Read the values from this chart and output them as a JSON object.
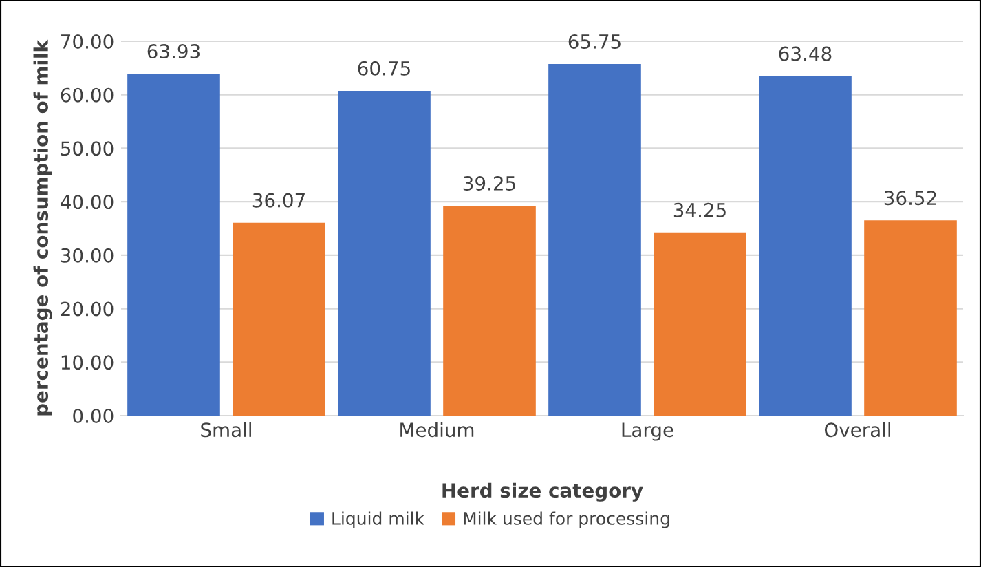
{
  "chart_data": {
    "type": "bar",
    "xlabel": "Herd size category",
    "ylabel": "percentage of consumption of milk",
    "categories": [
      "Small",
      "Medium",
      "Large",
      "Overall"
    ],
    "series": [
      {
        "name": "Liquid milk",
        "color": "#4472c4",
        "values": [
          63.93,
          60.75,
          65.75,
          63.48
        ]
      },
      {
        "name": "Milk used for processing",
        "color": "#ed7d31",
        "values": [
          36.07,
          39.25,
          34.25,
          36.52
        ]
      }
    ],
    "ylim": [
      0,
      70
    ],
    "yticks": [
      {
        "value": 0,
        "label": "0.00"
      },
      {
        "value": 10,
        "label": "10.00"
      },
      {
        "value": 20,
        "label": "20.00"
      },
      {
        "value": 30,
        "label": "30.00"
      },
      {
        "value": 40,
        "label": "40.00"
      },
      {
        "value": 50,
        "label": "50.00"
      },
      {
        "value": 60,
        "label": "60.00"
      },
      {
        "value": 70,
        "label": "70.00"
      }
    ],
    "grid": "y",
    "legend": "bottom",
    "data_labels": true
  }
}
